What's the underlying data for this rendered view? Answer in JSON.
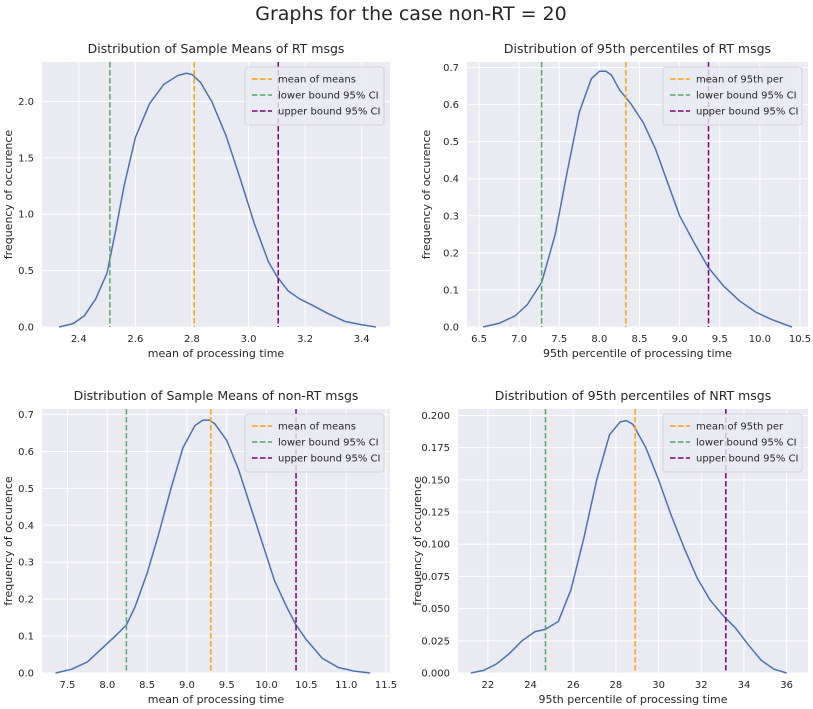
{
  "figure": {
    "title": "Graphs for the case non-RT = 20"
  },
  "colors": {
    "plot_bg": "#eaeaf2",
    "grid": "#ffffff",
    "kde": "#4c72b0",
    "mean": "#ffa500",
    "lower": "#55a868",
    "upper": "#800080"
  },
  "chart_data": [
    {
      "type": "line",
      "title": "Distribution of Sample Means of RT msgs",
      "xlabel": "mean of processing time",
      "ylabel": "frequency of occurence",
      "xlim": [
        2.27,
        3.5
      ],
      "ylim": [
        0,
        2.35
      ],
      "xticks": [
        2.4,
        2.6,
        2.8,
        3.0,
        3.2,
        3.4
      ],
      "xtick_labels": [
        "2.4",
        "2.6",
        "2.8",
        "3.0",
        "3.2",
        "3.4"
      ],
      "yticks": [
        0,
        0.5,
        1.0,
        1.5,
        2.0
      ],
      "ytick_labels": [
        "0.0",
        "0.5",
        "1.0",
        "1.5",
        "2.0"
      ],
      "legend": [
        "mean of means",
        "lower bound 95% CI",
        "upper bound 95% CI"
      ],
      "legend_position": "top-right",
      "vlines": [
        2.808,
        2.51,
        3.105
      ],
      "x": [
        2.33,
        2.38,
        2.42,
        2.46,
        2.5,
        2.53,
        2.56,
        2.6,
        2.65,
        2.7,
        2.75,
        2.78,
        2.8,
        2.83,
        2.87,
        2.92,
        2.97,
        3.02,
        3.07,
        3.1,
        3.14,
        3.18,
        3.22,
        3.28,
        3.34,
        3.4,
        3.45
      ],
      "y": [
        0.0,
        0.03,
        0.1,
        0.25,
        0.48,
        0.85,
        1.25,
        1.68,
        1.98,
        2.15,
        2.23,
        2.25,
        2.24,
        2.17,
        2.0,
        1.7,
        1.32,
        0.92,
        0.58,
        0.45,
        0.32,
        0.25,
        0.2,
        0.12,
        0.05,
        0.02,
        0.0
      ]
    },
    {
      "type": "line",
      "title": "Distribution of 95th percentiles of RT msgs",
      "xlabel": "95th percentile of processing time",
      "ylabel": "frequency of occurence",
      "xlim": [
        6.35,
        10.6
      ],
      "ylim": [
        0,
        0.715
      ],
      "xticks": [
        6.5,
        7.0,
        7.5,
        8.0,
        8.5,
        9.0,
        9.5,
        10.0,
        10.5
      ],
      "xtick_labels": [
        "6.5",
        "7.0",
        "7.5",
        "8.0",
        "8.5",
        "9.0",
        "9.5",
        "10.0",
        "10.5"
      ],
      "yticks": [
        0,
        0.1,
        0.2,
        0.3,
        0.4,
        0.5,
        0.6,
        0.7
      ],
      "ytick_labels": [
        "0.0",
        "0.1",
        "0.2",
        "0.3",
        "0.4",
        "0.5",
        "0.6",
        "0.7"
      ],
      "legend": [
        "mean of 95th per",
        "lower bound 95% CI",
        "upper bound 95% CI"
      ],
      "legend_position": "top-right",
      "vlines": [
        8.33,
        7.28,
        9.36
      ],
      "x": [
        6.55,
        6.75,
        6.95,
        7.1,
        7.28,
        7.45,
        7.6,
        7.75,
        7.9,
        8.0,
        8.08,
        8.15,
        8.25,
        8.4,
        8.55,
        8.7,
        8.85,
        9.0,
        9.2,
        9.36,
        9.55,
        9.75,
        9.95,
        10.15,
        10.4
      ],
      "y": [
        0.0,
        0.01,
        0.03,
        0.06,
        0.12,
        0.25,
        0.42,
        0.58,
        0.67,
        0.69,
        0.69,
        0.68,
        0.64,
        0.6,
        0.55,
        0.48,
        0.39,
        0.3,
        0.22,
        0.16,
        0.11,
        0.07,
        0.04,
        0.02,
        0.0
      ]
    },
    {
      "type": "line",
      "title": "Distribution of Sample Means of non-RT msgs",
      "xlabel": "mean of processing time",
      "ylabel": "frequency of occurence",
      "xlim": [
        7.18,
        11.55
      ],
      "ylim": [
        0,
        0.715
      ],
      "xticks": [
        7.5,
        8.0,
        8.5,
        9.0,
        9.5,
        10.0,
        10.5,
        11.0,
        11.5
      ],
      "xtick_labels": [
        "7.5",
        "8.0",
        "8.5",
        "9.0",
        "9.5",
        "10.0",
        "10.5",
        "11.0",
        "11.5"
      ],
      "yticks": [
        0,
        0.1,
        0.2,
        0.3,
        0.4,
        0.5,
        0.6,
        0.7
      ],
      "ytick_labels": [
        "0.0",
        "0.1",
        "0.2",
        "0.3",
        "0.4",
        "0.5",
        "0.6",
        "0.7"
      ],
      "legend": [
        "mean of means",
        "lower bound 95% CI",
        "upper bound 95% CI"
      ],
      "legend_position": "top-right",
      "vlines": [
        9.3,
        8.24,
        10.37
      ],
      "x": [
        7.35,
        7.55,
        7.75,
        7.95,
        8.1,
        8.24,
        8.35,
        8.5,
        8.65,
        8.8,
        8.95,
        9.1,
        9.2,
        9.28,
        9.35,
        9.5,
        9.65,
        9.8,
        9.95,
        10.1,
        10.25,
        10.37,
        10.5,
        10.7,
        10.9,
        11.1,
        11.3
      ],
      "y": [
        0.0,
        0.01,
        0.03,
        0.07,
        0.1,
        0.13,
        0.18,
        0.27,
        0.38,
        0.5,
        0.61,
        0.67,
        0.685,
        0.685,
        0.675,
        0.63,
        0.55,
        0.45,
        0.35,
        0.25,
        0.18,
        0.13,
        0.09,
        0.04,
        0.015,
        0.005,
        0.0
      ]
    },
    {
      "type": "line",
      "title": "Distribution of 95th percentiles of NRT msgs",
      "xlabel": "95th percentile of processing time",
      "ylabel": "frequency of occurence",
      "xlim": [
        20.6,
        37.0
      ],
      "ylim": [
        0,
        0.205
      ],
      "xticks": [
        22,
        24,
        26,
        28,
        30,
        32,
        34,
        36
      ],
      "xtick_labels": [
        "22",
        "24",
        "26",
        "28",
        "30",
        "32",
        "34",
        "36"
      ],
      "yticks": [
        0,
        0.025,
        0.05,
        0.075,
        0.1,
        0.125,
        0.15,
        0.175,
        0.2
      ],
      "ytick_labels": [
        "0.000",
        "0.025",
        "0.050",
        "0.075",
        "0.100",
        "0.125",
        "0.150",
        "0.175",
        "0.200"
      ],
      "legend": [
        "mean of 95th per",
        "lower bound 95% CI",
        "upper bound 95% CI"
      ],
      "legend_position": "top-right",
      "vlines": [
        28.9,
        24.7,
        33.15
      ],
      "x": [
        21.2,
        21.8,
        22.4,
        23.0,
        23.6,
        24.2,
        24.7,
        25.3,
        25.9,
        26.5,
        27.1,
        27.7,
        28.2,
        28.5,
        28.8,
        29.4,
        30.0,
        30.6,
        31.2,
        31.8,
        32.4,
        33.0,
        33.6,
        34.2,
        34.8,
        35.4,
        36.0
      ],
      "y": [
        0.0,
        0.002,
        0.007,
        0.015,
        0.025,
        0.032,
        0.034,
        0.04,
        0.065,
        0.105,
        0.15,
        0.185,
        0.195,
        0.196,
        0.193,
        0.175,
        0.15,
        0.122,
        0.097,
        0.074,
        0.057,
        0.045,
        0.035,
        0.022,
        0.01,
        0.003,
        0.0
      ]
    }
  ]
}
